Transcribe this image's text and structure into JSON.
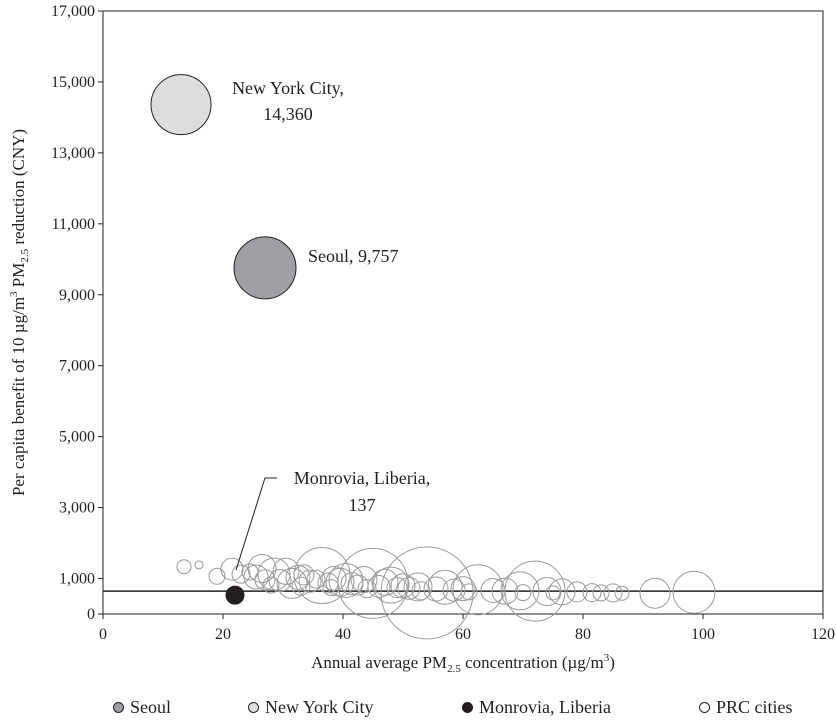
{
  "chart_data": {
    "type": "scatter",
    "xlabel": "Annual average PM",
    "xlabel_sub": "2.5",
    "xlabel_tail": " concentration (µg/m",
    "xlabel_sup": "3",
    "xlabel_end": ")",
    "ylabel": "Per capita benefit of 10 µg/m",
    "ylabel_sup": "3",
    "ylabel_mid": " PM",
    "ylabel_sub": "2.5",
    "ylabel_end": " reduction (CNY)",
    "xlim": [
      0,
      120
    ],
    "ylim": [
      0,
      17000
    ],
    "x_ticks": [
      "0",
      "20",
      "40",
      "60",
      "80",
      "100",
      "120"
    ],
    "y_ticks": [
      "0",
      "1,000",
      "3,000",
      "5,000",
      "7,000",
      "9,000",
      "11,000",
      "13,000",
      "15,000",
      "17,000"
    ],
    "y_tick_values": [
      0,
      1000,
      3000,
      5000,
      7000,
      9000,
      11000,
      13000,
      15000,
      17000
    ],
    "reference_line_y": 137,
    "grid": false,
    "legend_position": "bottom",
    "colors": {
      "seoul": "#9d9fa2",
      "new_york_city": "#dcdddf",
      "monrovia": "#231f20",
      "prc": "none",
      "prc_stroke": "#9a9a9a"
    },
    "series": [
      {
        "name": "Seoul",
        "points": [
          {
            "x": 27,
            "y": 9757,
            "size": 31
          }
        ]
      },
      {
        "name": "New York City",
        "points": [
          {
            "x": 13,
            "y": 14360,
            "size": 30
          }
        ]
      },
      {
        "name": "Monrovia, Liberia",
        "points": [
          {
            "x": 22,
            "y": 137,
            "size": 9
          }
        ]
      },
      {
        "name": "PRC cities",
        "points": [
          {
            "x": 13.5,
            "y": 770,
            "size": 7
          },
          {
            "x": 16,
            "y": 820,
            "size": 4
          },
          {
            "x": 19,
            "y": 500,
            "size": 8
          },
          {
            "x": 21.5,
            "y": 700,
            "size": 11
          },
          {
            "x": 23,
            "y": 560,
            "size": 9
          },
          {
            "x": 24.5,
            "y": 620,
            "size": 8
          },
          {
            "x": 25.5,
            "y": 480,
            "size": 12
          },
          {
            "x": 26.5,
            "y": 720,
            "size": 14
          },
          {
            "x": 27,
            "y": 400,
            "size": 10
          },
          {
            "x": 28.5,
            "y": 560,
            "size": 16
          },
          {
            "x": 29.5,
            "y": 380,
            "size": 11
          },
          {
            "x": 30.5,
            "y": 640,
            "size": 13
          },
          {
            "x": 31.5,
            "y": 300,
            "size": 15
          },
          {
            "x": 32.5,
            "y": 470,
            "size": 12
          },
          {
            "x": 33.5,
            "y": 540,
            "size": 10
          },
          {
            "x": 34.5,
            "y": 360,
            "size": 11
          },
          {
            "x": 35.5,
            "y": 420,
            "size": 9
          },
          {
            "x": 36.5,
            "y": 520,
            "size": 28
          },
          {
            "x": 37.5,
            "y": 310,
            "size": 10
          },
          {
            "x": 38.5,
            "y": 440,
            "size": 12
          },
          {
            "x": 39.5,
            "y": 330,
            "size": 14
          },
          {
            "x": 40.5,
            "y": 380,
            "size": 17
          },
          {
            "x": 41.5,
            "y": 290,
            "size": 11
          },
          {
            "x": 42.5,
            "y": 250,
            "size": 10
          },
          {
            "x": 43.5,
            "y": 410,
            "size": 13
          },
          {
            "x": 45,
            "y": 300,
            "size": 35
          },
          {
            "x": 46,
            "y": 210,
            "size": 11
          },
          {
            "x": 47,
            "y": 330,
            "size": 13
          },
          {
            "x": 48,
            "y": 250,
            "size": 18
          },
          {
            "x": 49,
            "y": 180,
            "size": 10
          },
          {
            "x": 50,
            "y": 230,
            "size": 12
          },
          {
            "x": 51,
            "y": 160,
            "size": 11
          },
          {
            "x": 52.5,
            "y": 200,
            "size": 14
          },
          {
            "x": 54,
            "y": 30,
            "size": 46
          },
          {
            "x": 55.5,
            "y": 140,
            "size": 12
          },
          {
            "x": 57,
            "y": 190,
            "size": 17
          },
          {
            "x": 58.5,
            "y": 110,
            "size": 11
          },
          {
            "x": 60,
            "y": 150,
            "size": 12
          },
          {
            "x": 62.5,
            "y": 120,
            "size": 25
          },
          {
            "x": 65,
            "y": 100,
            "size": 12
          },
          {
            "x": 67,
            "y": 80,
            "size": 13
          },
          {
            "x": 69.5,
            "y": 90,
            "size": 19
          },
          {
            "x": 72,
            "y": 80,
            "size": 30
          },
          {
            "x": 74,
            "y": 70,
            "size": 14
          },
          {
            "x": 76.5,
            "y": 60,
            "size": 13
          },
          {
            "x": 79,
            "y": 60,
            "size": 10
          },
          {
            "x": 81.5,
            "y": 40,
            "size": 9
          },
          {
            "x": 83,
            "y": 30,
            "size": 8
          },
          {
            "x": 85,
            "y": 30,
            "size": 9
          },
          {
            "x": 86.5,
            "y": 20,
            "size": 7
          },
          {
            "x": 92,
            "y": 20,
            "size": 15
          },
          {
            "x": 98.5,
            "y": 50,
            "size": 21
          },
          {
            "x": 44,
            "y": 150,
            "size": 9
          },
          {
            "x": 38,
            "y": 180,
            "size": 8
          },
          {
            "x": 33,
            "y": 220,
            "size": 9
          },
          {
            "x": 28,
            "y": 250,
            "size": 8
          },
          {
            "x": 53,
            "y": 90,
            "size": 9
          },
          {
            "x": 61,
            "y": 60,
            "size": 8
          },
          {
            "x": 70,
            "y": 40,
            "size": 8
          },
          {
            "x": 75,
            "y": 30,
            "size": 7
          }
        ]
      }
    ],
    "annotations": [
      {
        "name": "new-york-label",
        "line1": "New York City,",
        "line2": "14,360"
      },
      {
        "name": "seoul-label",
        "line1": "Seoul, 9,757",
        "line2": ""
      },
      {
        "name": "monrovia-label",
        "line1": "Monrovia, Liberia,",
        "line2": "137"
      }
    ],
    "legend": [
      {
        "name": "Seoul",
        "key": "seoul"
      },
      {
        "name": "New York City",
        "key": "new_york_city"
      },
      {
        "name": "Monrovia, Liberia",
        "key": "monrovia"
      },
      {
        "name": "PRC cities",
        "key": "prc"
      }
    ]
  }
}
